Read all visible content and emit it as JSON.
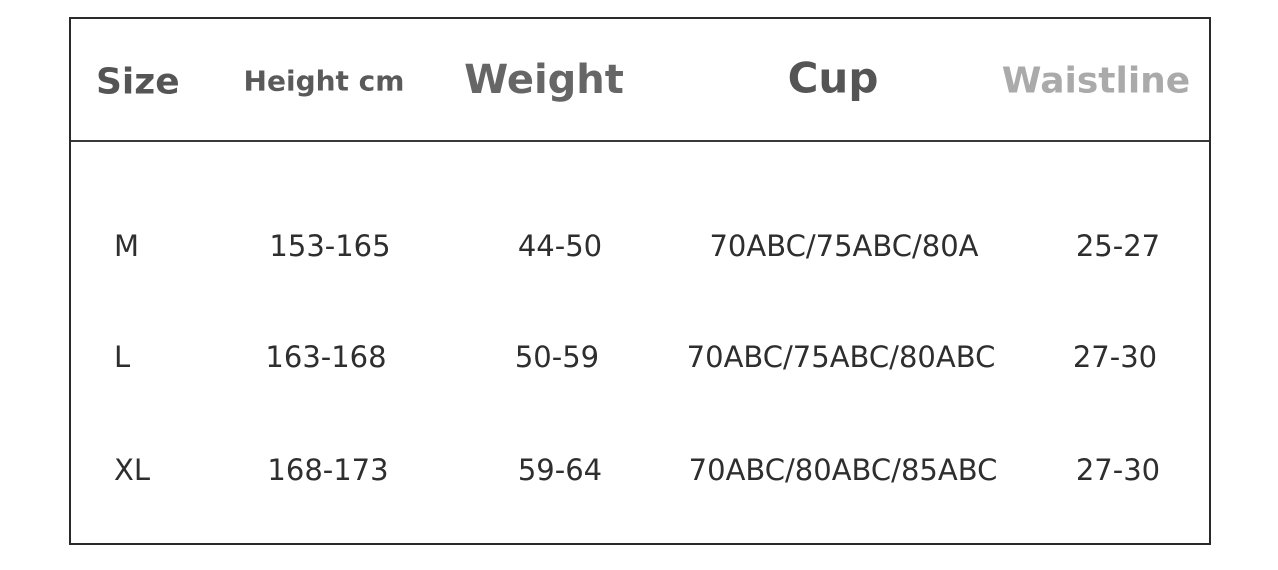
{
  "header": {
    "size": "Size",
    "height": "Height cm",
    "weight": "Weight",
    "cup": "Cup",
    "waistline": "Waistline"
  },
  "rows": [
    {
      "size": "M",
      "height": "153-165",
      "weight": "44-50",
      "cup": "70ABC/75ABC/80A",
      "waistline": "25-27"
    },
    {
      "size": "L",
      "height": "163-168",
      "weight": "50-59",
      "cup": "70ABC/75ABC/80ABC",
      "waistline": "27-30"
    },
    {
      "size": "XL",
      "height": "168-173",
      "weight": "59-64",
      "cup": "70ABC/80ABC/85ABC",
      "waistline": "27-30"
    }
  ]
}
